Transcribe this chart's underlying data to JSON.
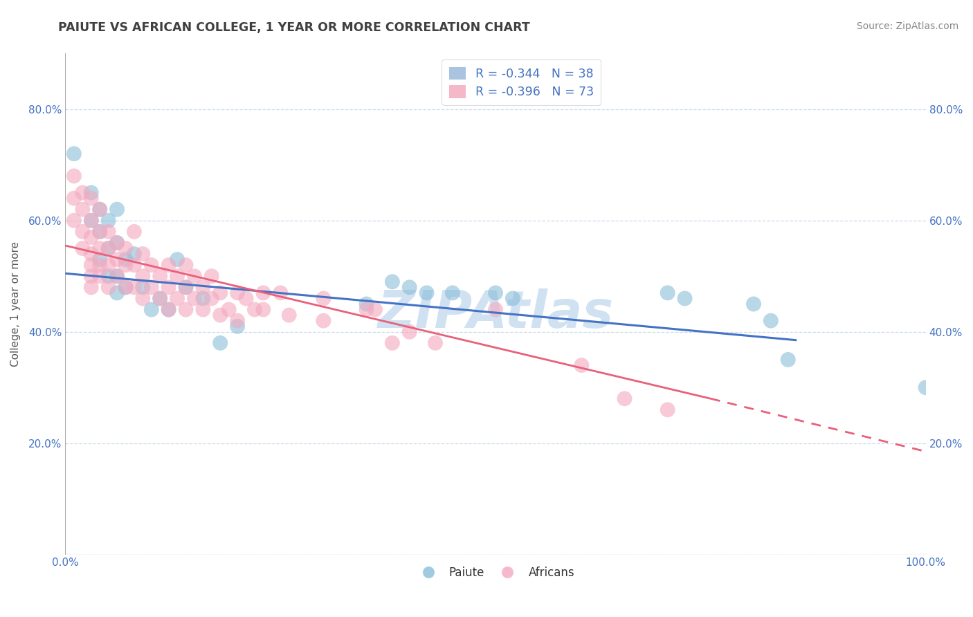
{
  "title": "PAIUTE VS AFRICAN COLLEGE, 1 YEAR OR MORE CORRELATION CHART",
  "source_text": "Source: ZipAtlas.com",
  "ylabel": "College, 1 year or more",
  "xlim": [
    0.0,
    1.0
  ],
  "ylim": [
    0.0,
    0.9
  ],
  "x_ticks": [
    0.0,
    0.2,
    0.4,
    0.6,
    0.8,
    1.0
  ],
  "y_ticks": [
    0.0,
    0.2,
    0.4,
    0.6,
    0.8
  ],
  "tick_label_color": "#4472c4",
  "paiute_color": "#89bdd8",
  "african_color": "#f4a8be",
  "paiute_line_color": "#4472c4",
  "african_line_color": "#e8607a",
  "watermark": "ZipAtlas",
  "grid_color": "#c8d8e8",
  "background_color": "#ffffff",
  "title_color": "#404040",
  "axis_label_color": "#555555",
  "watermark_color": "#c8ddf0",
  "paiute_scatter": [
    [
      0.01,
      0.72
    ],
    [
      0.03,
      0.65
    ],
    [
      0.03,
      0.6
    ],
    [
      0.04,
      0.62
    ],
    [
      0.04,
      0.58
    ],
    [
      0.04,
      0.53
    ],
    [
      0.05,
      0.6
    ],
    [
      0.05,
      0.55
    ],
    [
      0.05,
      0.5
    ],
    [
      0.06,
      0.62
    ],
    [
      0.06,
      0.56
    ],
    [
      0.06,
      0.5
    ],
    [
      0.06,
      0.47
    ],
    [
      0.07,
      0.53
    ],
    [
      0.07,
      0.48
    ],
    [
      0.08,
      0.54
    ],
    [
      0.09,
      0.48
    ],
    [
      0.1,
      0.44
    ],
    [
      0.11,
      0.46
    ],
    [
      0.12,
      0.44
    ],
    [
      0.13,
      0.53
    ],
    [
      0.14,
      0.48
    ],
    [
      0.16,
      0.46
    ],
    [
      0.18,
      0.38
    ],
    [
      0.2,
      0.41
    ],
    [
      0.35,
      0.45
    ],
    [
      0.38,
      0.49
    ],
    [
      0.4,
      0.48
    ],
    [
      0.42,
      0.47
    ],
    [
      0.45,
      0.47
    ],
    [
      0.5,
      0.47
    ],
    [
      0.52,
      0.46
    ],
    [
      0.7,
      0.47
    ],
    [
      0.72,
      0.46
    ],
    [
      0.8,
      0.45
    ],
    [
      0.82,
      0.42
    ],
    [
      0.84,
      0.35
    ],
    [
      1.0,
      0.3
    ]
  ],
  "african_scatter": [
    [
      0.01,
      0.68
    ],
    [
      0.01,
      0.64
    ],
    [
      0.01,
      0.6
    ],
    [
      0.02,
      0.65
    ],
    [
      0.02,
      0.62
    ],
    [
      0.02,
      0.58
    ],
    [
      0.02,
      0.55
    ],
    [
      0.03,
      0.64
    ],
    [
      0.03,
      0.6
    ],
    [
      0.03,
      0.57
    ],
    [
      0.03,
      0.54
    ],
    [
      0.03,
      0.52
    ],
    [
      0.03,
      0.5
    ],
    [
      0.03,
      0.48
    ],
    [
      0.04,
      0.62
    ],
    [
      0.04,
      0.58
    ],
    [
      0.04,
      0.55
    ],
    [
      0.04,
      0.52
    ],
    [
      0.04,
      0.5
    ],
    [
      0.05,
      0.58
    ],
    [
      0.05,
      0.55
    ],
    [
      0.05,
      0.52
    ],
    [
      0.05,
      0.48
    ],
    [
      0.06,
      0.56
    ],
    [
      0.06,
      0.53
    ],
    [
      0.06,
      0.5
    ],
    [
      0.07,
      0.55
    ],
    [
      0.07,
      0.52
    ],
    [
      0.07,
      0.48
    ],
    [
      0.08,
      0.58
    ],
    [
      0.08,
      0.52
    ],
    [
      0.08,
      0.48
    ],
    [
      0.09,
      0.54
    ],
    [
      0.09,
      0.5
    ],
    [
      0.09,
      0.46
    ],
    [
      0.1,
      0.52
    ],
    [
      0.1,
      0.48
    ],
    [
      0.11,
      0.5
    ],
    [
      0.11,
      0.46
    ],
    [
      0.12,
      0.52
    ],
    [
      0.12,
      0.48
    ],
    [
      0.12,
      0.44
    ],
    [
      0.13,
      0.5
    ],
    [
      0.13,
      0.46
    ],
    [
      0.14,
      0.52
    ],
    [
      0.14,
      0.48
    ],
    [
      0.14,
      0.44
    ],
    [
      0.15,
      0.5
    ],
    [
      0.15,
      0.46
    ],
    [
      0.16,
      0.48
    ],
    [
      0.16,
      0.44
    ],
    [
      0.17,
      0.5
    ],
    [
      0.17,
      0.46
    ],
    [
      0.18,
      0.47
    ],
    [
      0.18,
      0.43
    ],
    [
      0.19,
      0.44
    ],
    [
      0.2,
      0.47
    ],
    [
      0.2,
      0.42
    ],
    [
      0.21,
      0.46
    ],
    [
      0.22,
      0.44
    ],
    [
      0.23,
      0.47
    ],
    [
      0.23,
      0.44
    ],
    [
      0.25,
      0.47
    ],
    [
      0.26,
      0.43
    ],
    [
      0.3,
      0.46
    ],
    [
      0.3,
      0.42
    ],
    [
      0.35,
      0.44
    ],
    [
      0.36,
      0.44
    ],
    [
      0.38,
      0.38
    ],
    [
      0.4,
      0.4
    ],
    [
      0.43,
      0.38
    ],
    [
      0.5,
      0.44
    ],
    [
      0.6,
      0.34
    ],
    [
      0.65,
      0.28
    ],
    [
      0.7,
      0.26
    ]
  ],
  "paiute_line": {
    "x0": 0.0,
    "y0": 0.505,
    "x1": 0.85,
    "y1": 0.385
  },
  "african_line_solid": {
    "x0": 0.0,
    "y0": 0.555,
    "x1": 0.75,
    "y1": 0.28
  },
  "african_line_dash": {
    "x0": 0.75,
    "y0": 0.28,
    "x1": 1.0,
    "y1": 0.185
  }
}
